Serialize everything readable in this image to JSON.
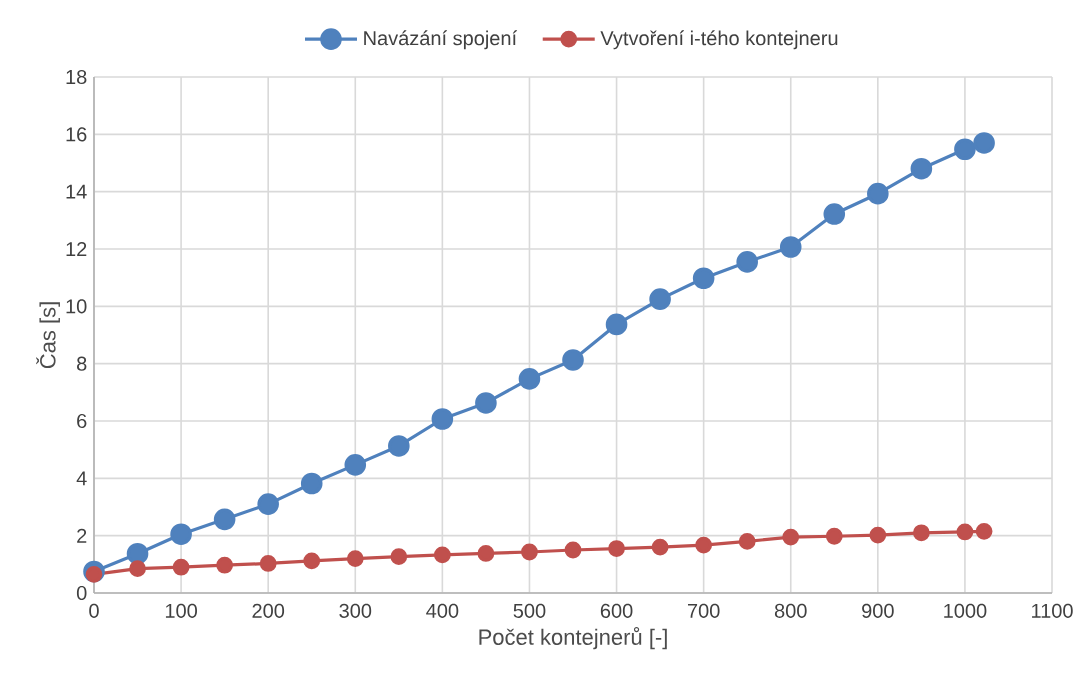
{
  "chart_data": {
    "type": "line",
    "xlabel": "Počet kontejnerů [-]",
    "ylabel": "Čas [s]",
    "x": [
      0,
      50,
      100,
      150,
      200,
      250,
      300,
      350,
      400,
      450,
      500,
      550,
      600,
      650,
      700,
      750,
      800,
      850,
      900,
      950,
      1000,
      1022
    ],
    "series": [
      {
        "name": "Navázání spojení",
        "color": "#4f81bd",
        "values": [
          0.75,
          1.37,
          2.05,
          2.57,
          3.1,
          3.82,
          4.47,
          5.13,
          6.07,
          6.63,
          7.47,
          8.13,
          9.37,
          10.25,
          10.98,
          11.55,
          12.07,
          13.22,
          13.93,
          14.8,
          15.48,
          15.7
        ]
      },
      {
        "name": "Vytvoření i-tého kontejneru",
        "color": "#c0504d",
        "values": [
          0.65,
          0.85,
          0.9,
          0.97,
          1.03,
          1.12,
          1.2,
          1.27,
          1.33,
          1.38,
          1.43,
          1.5,
          1.55,
          1.6,
          1.67,
          1.8,
          1.95,
          1.98,
          2.02,
          2.1,
          2.13,
          2.15
        ]
      }
    ],
    "xlim": [
      0,
      1100
    ],
    "xticks": [
      0,
      100,
      200,
      300,
      400,
      500,
      600,
      700,
      800,
      900,
      1000,
      1100
    ],
    "ylim": [
      0,
      18
    ],
    "yticks": [
      0,
      2,
      4,
      6,
      8,
      10,
      12,
      14,
      16,
      18
    ],
    "grid": true,
    "legend": "top",
    "marker": "circle",
    "line_style": "solid"
  }
}
